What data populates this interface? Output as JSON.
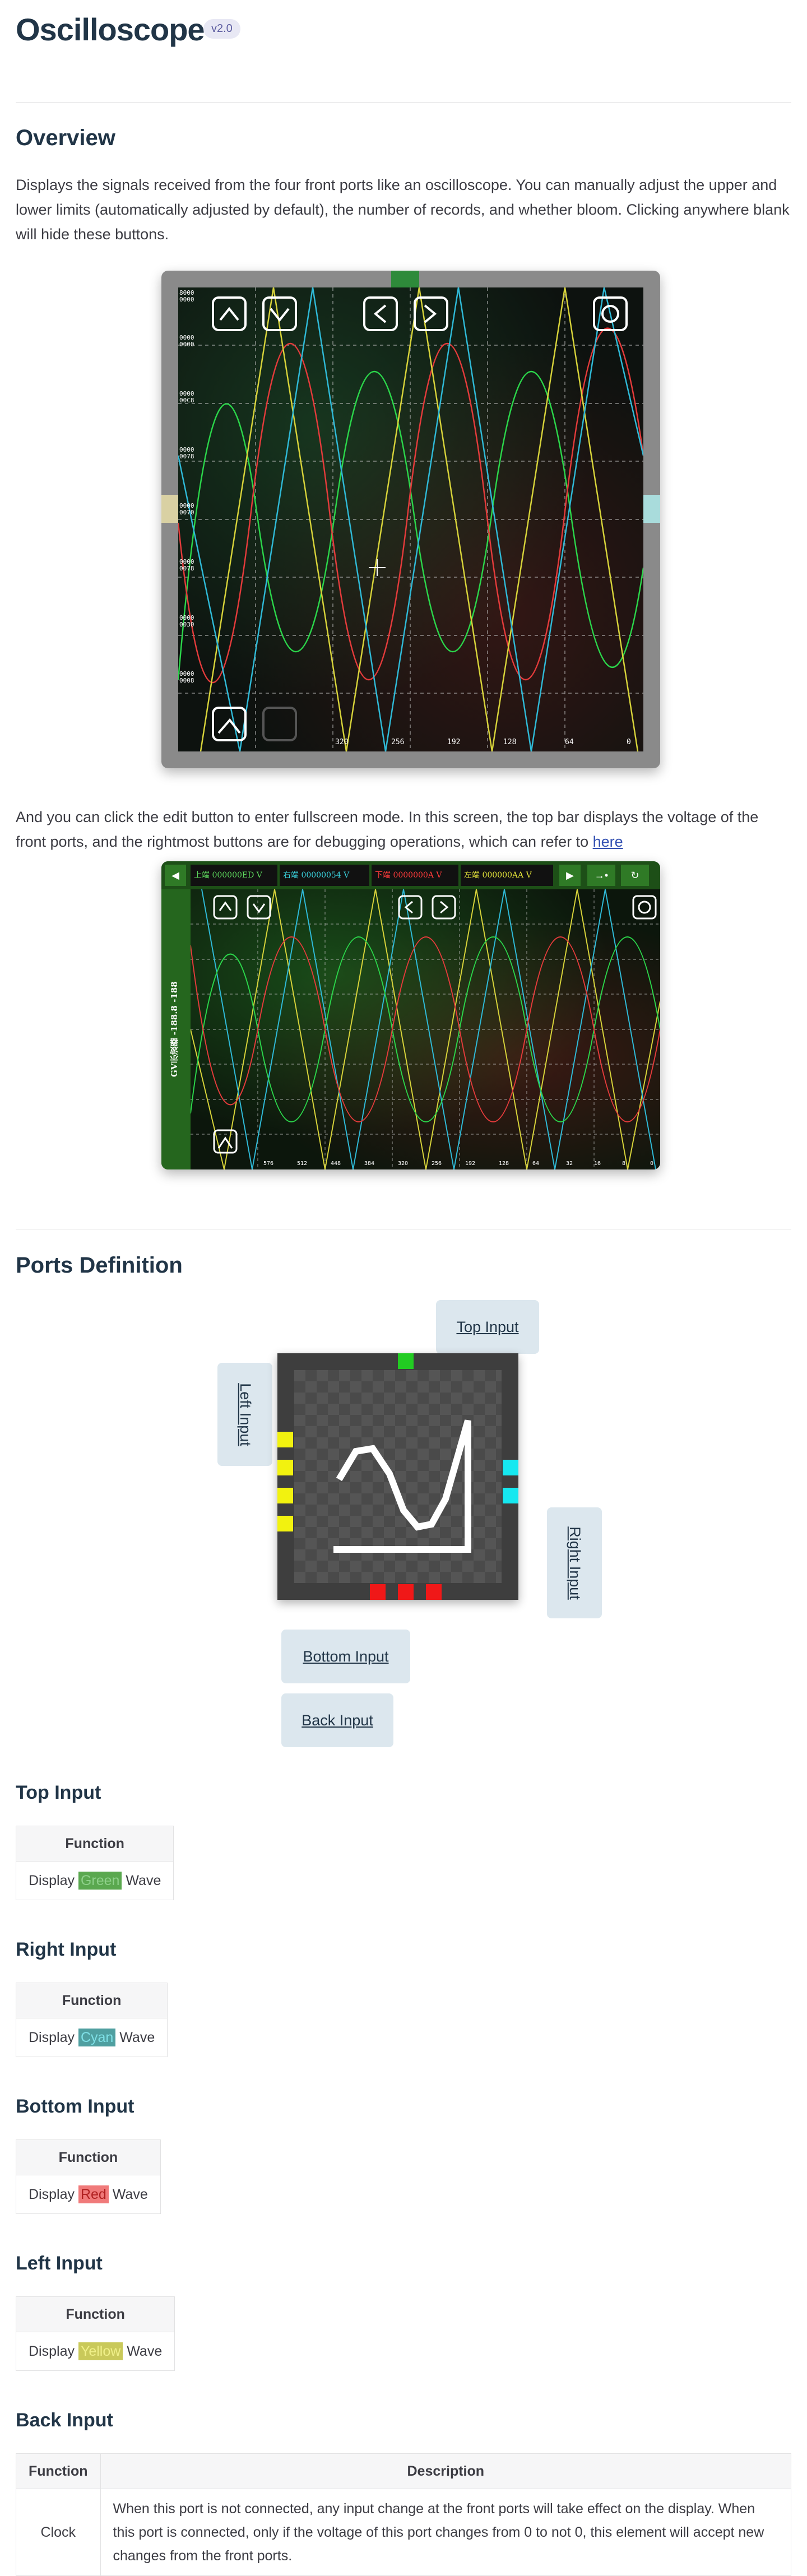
{
  "title": "Oscilloscope",
  "version": "v2.0",
  "overview": {
    "heading": "Overview",
    "paragraph1": "Displays the signals received from the four front ports like an oscilloscope. You can manually adjust the upper and lower limits (automatically adjusted by default), the number of records, and whether bloom. Clicking anywhere blank will hide these buttons.",
    "paragraph2": "And you can click the edit button to enter fullscreen mode. In this screen, the top bar displays the voltage of the front ports, and the rightmost buttons are for debugging operations, which can refer to ",
    "link_text": "here"
  },
  "scope1": {
    "left_axis_labels": [
      "8000 0000",
      "0000 0000",
      "0000 00C8",
      "0000 0078",
      "0000 0070",
      "0000 0078",
      "0000 0030",
      "0000 0008"
    ],
    "bottom_axis_labels": [
      "320",
      "256",
      "192",
      "128",
      "64",
      "0"
    ]
  },
  "fullscreen": {
    "segments": [
      {
        "text": "上端 000000ED V",
        "color": "#5cd65c"
      },
      {
        "text": "右端 00000054 V",
        "color": "#3ad4e0"
      },
      {
        "text": "下端 0000000A V",
        "color": "#ff3b3b"
      },
      {
        "text": "左端 000000AA V",
        "color": "#e5e53a"
      }
    ],
    "side_label": "GV示波器 -188.8 -188",
    "bottom_axis_labels": [
      "576",
      "512",
      "448",
      "384",
      "320",
      "256",
      "192",
      "128",
      "64",
      "32",
      "16",
      "8",
      "0"
    ],
    "buttons": [
      "◀",
      "▶",
      "→•",
      "↻"
    ]
  },
  "ports": {
    "heading": "Ports Definition",
    "labels": {
      "top": "Top Input",
      "left": "Left Input",
      "right": "Right Input",
      "bottom": "Bottom Input",
      "back": "Back Input"
    }
  },
  "colors": {
    "green": "#5aa84f",
    "cyan": "#4f9fa0",
    "red": "#f07a7a",
    "yellow": "#c9c95a",
    "chip_top": "#22cc22",
    "chip_side_yellow": "#f2f20f",
    "chip_side_cyan": "#15e8f0",
    "chip_bottom_red": "#f01818"
  },
  "sections": {
    "top": {
      "heading": "Top Input",
      "col": "Function",
      "pre": "Display",
      "word": "Green",
      "post": "Wave"
    },
    "right": {
      "heading": "Right Input",
      "col": "Function",
      "pre": "Display",
      "word": "Cyan",
      "post": "Wave"
    },
    "bottom": {
      "heading": "Bottom Input",
      "col": "Function",
      "pre": "Display",
      "word": "Red",
      "post": "Wave"
    },
    "left": {
      "heading": "Left Input",
      "col": "Function",
      "pre": "Display",
      "word": "Yellow",
      "post": "Wave"
    },
    "back": {
      "heading": "Back Input",
      "col1": "Function",
      "col2": "Description",
      "func": "Clock",
      "desc": "When this port is not connected, any input change at the front ports will take effect on the display. When this port is connected, only if the voltage of this port changes from 0 to not 0, this element will accept new changes from the front ports."
    }
  }
}
